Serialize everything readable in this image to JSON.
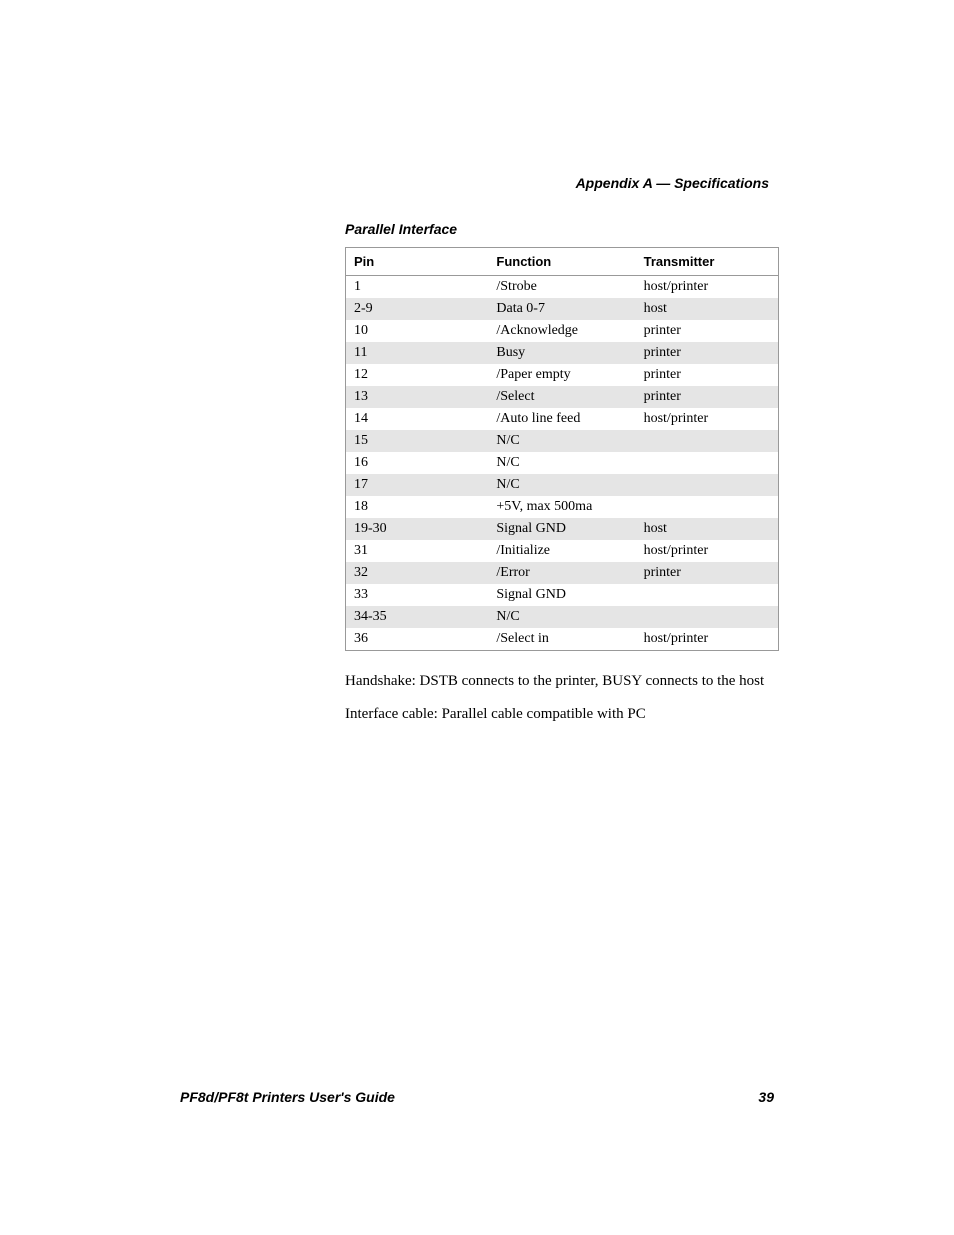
{
  "header": "Appendix A — Specifications",
  "section_title": "Parallel Interface",
  "table": {
    "columns": [
      "Pin",
      "Function",
      "Transmitter"
    ],
    "rows": [
      [
        "1",
        "/Strobe",
        "host/printer"
      ],
      [
        "2-9",
        "Data 0-7",
        "host"
      ],
      [
        "10",
        "/Acknowledge",
        "printer"
      ],
      [
        "11",
        "Busy",
        "printer"
      ],
      [
        "12",
        "/Paper empty",
        "printer"
      ],
      [
        "13",
        "/Select",
        "printer"
      ],
      [
        "14",
        "/Auto line feed",
        "host/printer"
      ],
      [
        "15",
        "N/C",
        ""
      ],
      [
        "16",
        "N/C",
        ""
      ],
      [
        "17",
        "N/C",
        ""
      ],
      [
        "18",
        "+5V, max 500ma",
        ""
      ],
      [
        "19-30",
        "Signal GND",
        "host"
      ],
      [
        "31",
        "/Initialize",
        "host/printer"
      ],
      [
        "32",
        "/Error",
        "printer"
      ],
      [
        "33",
        "Signal GND",
        ""
      ],
      [
        "34-35",
        "N/C",
        ""
      ],
      [
        "36",
        "/Select in",
        "host/printer"
      ]
    ]
  },
  "paragraph1": "Handshake: DSTB connects to the printer, BUSY connects to the host",
  "paragraph2": "Interface cable: Parallel cable compatible with PC",
  "footer_title": "PF8d/PF8t Printers User's Guide",
  "footer_page": "39"
}
